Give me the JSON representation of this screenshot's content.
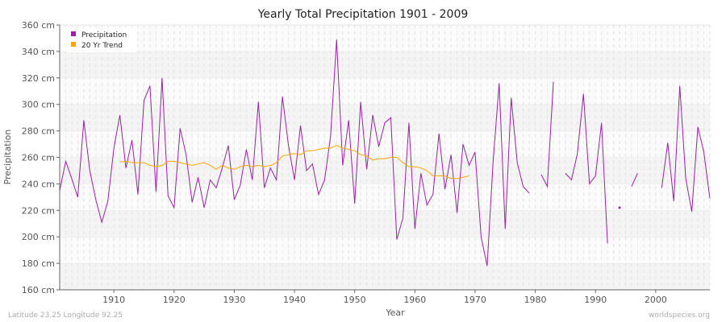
{
  "chart_data": {
    "type": "line",
    "title": "Yearly Total Precipitation 1901 - 2009",
    "xlabel": "Year",
    "ylabel": "Precipitation",
    "xlim": [
      1901,
      2009
    ],
    "ylim": [
      160,
      360
    ],
    "y_unit": "cm",
    "x_ticks": [
      1910,
      1920,
      1930,
      1940,
      1950,
      1960,
      1970,
      1980,
      1990,
      2000
    ],
    "y_ticks": [
      160,
      180,
      200,
      220,
      240,
      260,
      280,
      300,
      320,
      340,
      360
    ],
    "grid": true,
    "legend_position": "top-left",
    "series": [
      {
        "name": "Precipitation",
        "color": "#9b1fa8",
        "start_year": 1901,
        "values": [
          235,
          257,
          244,
          230,
          288,
          250,
          228,
          211,
          227,
          267,
          292,
          252,
          273,
          232,
          303,
          314,
          234,
          320,
          231,
          222,
          282,
          262,
          226,
          245,
          222,
          243,
          237,
          252,
          269,
          228,
          239,
          266,
          243,
          302,
          237,
          252,
          243,
          306,
          269,
          243,
          284,
          250,
          255,
          232,
          243,
          276,
          349,
          254,
          288,
          225,
          302,
          251,
          292,
          268,
          286,
          290,
          198,
          214,
          286,
          206,
          248,
          224,
          232,
          278,
          236,
          262,
          218,
          270,
          254,
          264,
          200,
          178,
          257,
          316,
          206,
          305,
          256,
          238,
          233,
          null,
          247,
          238,
          317,
          null,
          248,
          243,
          263,
          308,
          240,
          246,
          286,
          195,
          null,
          222,
          null,
          238,
          248,
          null,
          null,
          null,
          237,
          271,
          227,
          314,
          244,
          219,
          283,
          264,
          229
        ]
      },
      {
        "name": "20 Yr Trend",
        "color": "#ffa500",
        "start_year": 1911,
        "values": [
          256.5,
          257,
          256,
          256,
          256,
          254,
          253,
          254,
          257,
          257,
          256,
          255,
          254,
          255,
          256,
          254,
          251,
          254,
          252,
          251,
          253,
          254,
          253,
          254,
          253,
          254,
          256,
          261,
          262,
          263,
          262,
          265,
          265,
          266,
          267,
          267,
          269,
          267,
          266,
          265,
          262,
          261,
          258,
          259,
          259,
          260,
          260,
          256,
          253,
          253,
          252,
          250,
          246,
          246,
          246,
          244,
          244,
          245,
          246
        ]
      }
    ]
  },
  "footer": {
    "left": "Latitude 23.25 Longitude 92.25",
    "right": "worldspecies.org"
  }
}
